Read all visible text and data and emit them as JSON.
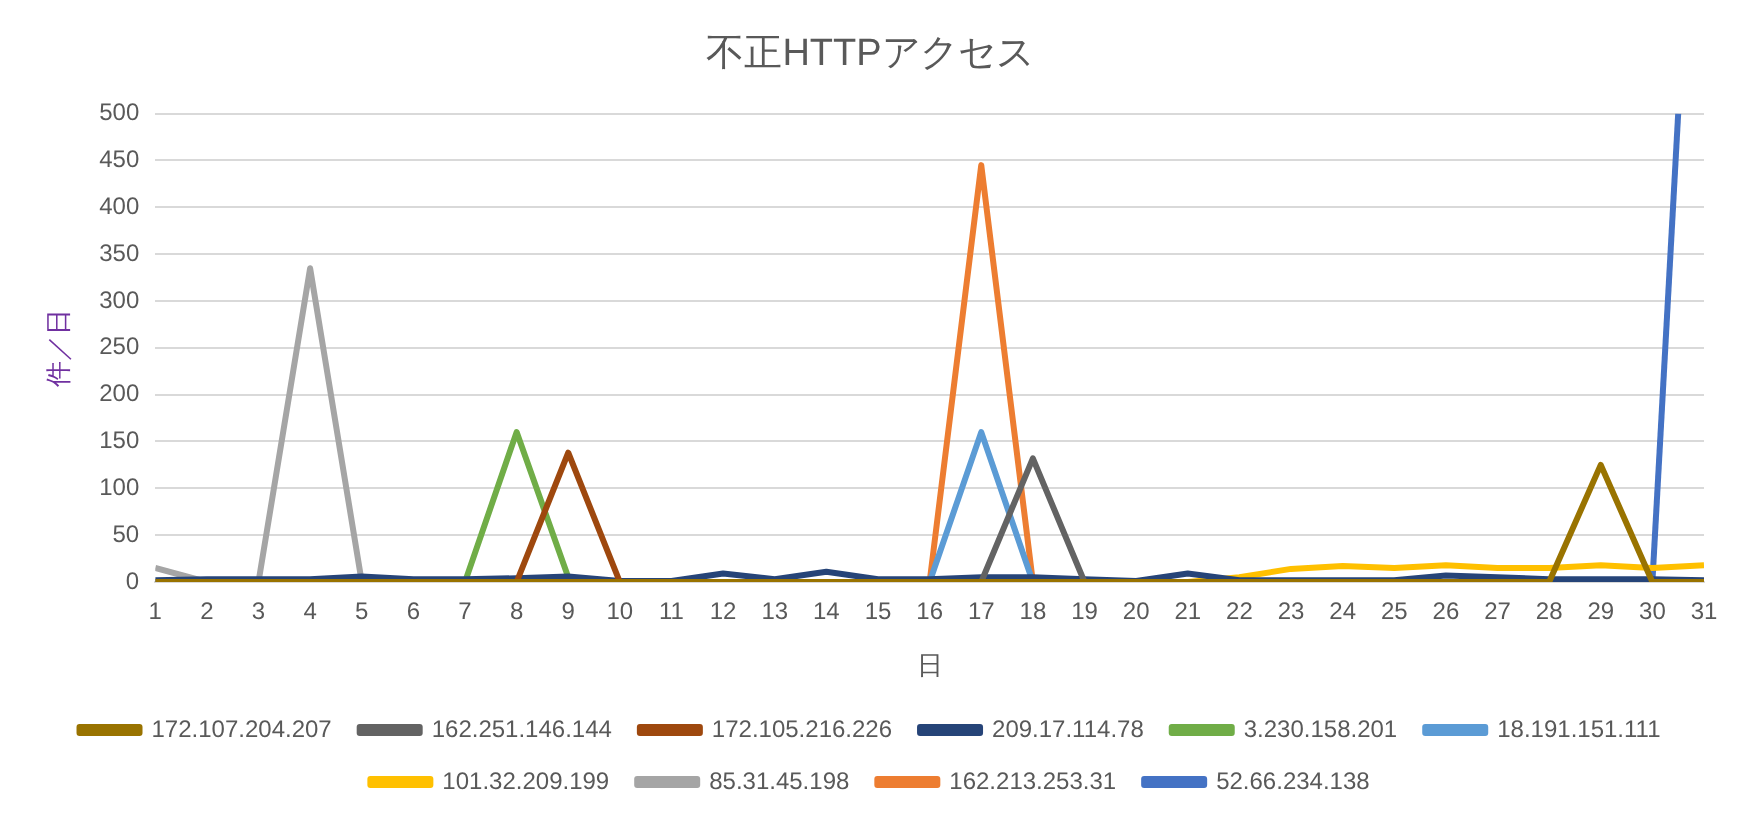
{
  "chart_data": {
    "type": "line",
    "title": "不正HTTPアクセス",
    "xlabel": "日",
    "ylabel": "件／日",
    "x": [
      1,
      2,
      3,
      4,
      5,
      6,
      7,
      8,
      9,
      10,
      11,
      12,
      13,
      14,
      15,
      16,
      17,
      18,
      19,
      20,
      21,
      22,
      23,
      24,
      25,
      26,
      27,
      28,
      29,
      30,
      31
    ],
    "xlim": [
      1,
      31
    ],
    "xticks": [
      1,
      2,
      3,
      4,
      5,
      6,
      7,
      8,
      9,
      10,
      11,
      12,
      13,
      14,
      15,
      16,
      17,
      18,
      19,
      20,
      21,
      22,
      23,
      24,
      25,
      26,
      27,
      28,
      29,
      30,
      31
    ],
    "ylim": [
      0,
      500
    ],
    "yticks": [
      0,
      50,
      100,
      150,
      200,
      250,
      300,
      350,
      400,
      450,
      500
    ],
    "grid": "y",
    "legend": "bottom",
    "marker": "none",
    "line_style": "solid",
    "series": [
      {
        "name": "52.66.234.138",
        "color": "#4472c4",
        "x": [
          30,
          30.5
        ],
        "values": [
          0,
          500
        ]
      },
      {
        "name": "162.213.253.31",
        "color": "#ed7d31",
        "values": [
          null,
          null,
          null,
          null,
          null,
          null,
          null,
          null,
          null,
          null,
          null,
          null,
          null,
          null,
          null,
          0,
          445,
          0,
          null,
          null,
          null,
          null,
          null,
          null,
          null,
          null,
          null,
          null,
          null,
          null,
          null
        ]
      },
      {
        "name": "85.31.45.198",
        "color": "#a5a5a5",
        "values": [
          15,
          0,
          0,
          335,
          0,
          null,
          null,
          null,
          null,
          null,
          null,
          null,
          null,
          null,
          null,
          null,
          null,
          null,
          null,
          null,
          null,
          null,
          null,
          null,
          null,
          null,
          null,
          null,
          null,
          null,
          null
        ]
      },
      {
        "name": "101.32.209.199",
        "color": "#ffc000",
        "values": [
          null,
          null,
          null,
          null,
          null,
          null,
          null,
          null,
          null,
          null,
          null,
          null,
          null,
          null,
          null,
          null,
          null,
          null,
          null,
          null,
          0,
          5,
          14,
          17,
          15,
          18,
          15,
          15,
          18,
          15,
          18
        ]
      },
      {
        "name": "18.191.151.111",
        "color": "#5b9bd5",
        "values": [
          null,
          null,
          null,
          null,
          null,
          null,
          null,
          null,
          null,
          null,
          null,
          null,
          null,
          null,
          null,
          0,
          160,
          0,
          null,
          null,
          null,
          null,
          null,
          null,
          null,
          null,
          null,
          null,
          null,
          null,
          null
        ]
      },
      {
        "name": "3.230.158.201",
        "color": "#70ad47",
        "values": [
          null,
          null,
          null,
          null,
          null,
          null,
          0,
          160,
          5,
          null,
          null,
          null,
          null,
          null,
          null,
          null,
          null,
          null,
          null,
          null,
          null,
          null,
          null,
          null,
          null,
          null,
          null,
          null,
          null,
          null,
          null
        ]
      },
      {
        "name": "209.17.114.78",
        "color": "#264478",
        "values": [
          2,
          3,
          3,
          3,
          6,
          3,
          3,
          4,
          6,
          1,
          1,
          9,
          3,
          11,
          3,
          3,
          5,
          5,
          3,
          1,
          9,
          2,
          2,
          2,
          2,
          7,
          5,
          3,
          3,
          3,
          2
        ]
      },
      {
        "name": "172.105.216.226",
        "color": "#9e480e",
        "values": [
          null,
          null,
          null,
          null,
          null,
          null,
          null,
          0,
          138,
          0,
          null,
          null,
          null,
          null,
          null,
          null,
          null,
          null,
          null,
          null,
          null,
          null,
          null,
          null,
          null,
          null,
          null,
          null,
          null,
          null,
          null
        ]
      },
      {
        "name": "162.251.146.144",
        "color": "#636363",
        "values": [
          null,
          null,
          null,
          null,
          null,
          null,
          null,
          null,
          null,
          null,
          null,
          null,
          null,
          null,
          null,
          null,
          0,
          132,
          0,
          null,
          null,
          null,
          null,
          null,
          null,
          null,
          null,
          null,
          null,
          null,
          null
        ]
      },
      {
        "name": "172.107.204.207",
        "color": "#997300",
        "values": [
          0,
          0,
          0,
          0,
          0,
          0,
          0,
          0,
          0,
          0,
          0,
          0,
          0,
          0,
          0,
          0,
          0,
          0,
          0,
          0,
          0,
          0,
          0,
          0,
          0,
          0,
          0,
          0,
          125,
          0,
          0
        ]
      }
    ]
  }
}
